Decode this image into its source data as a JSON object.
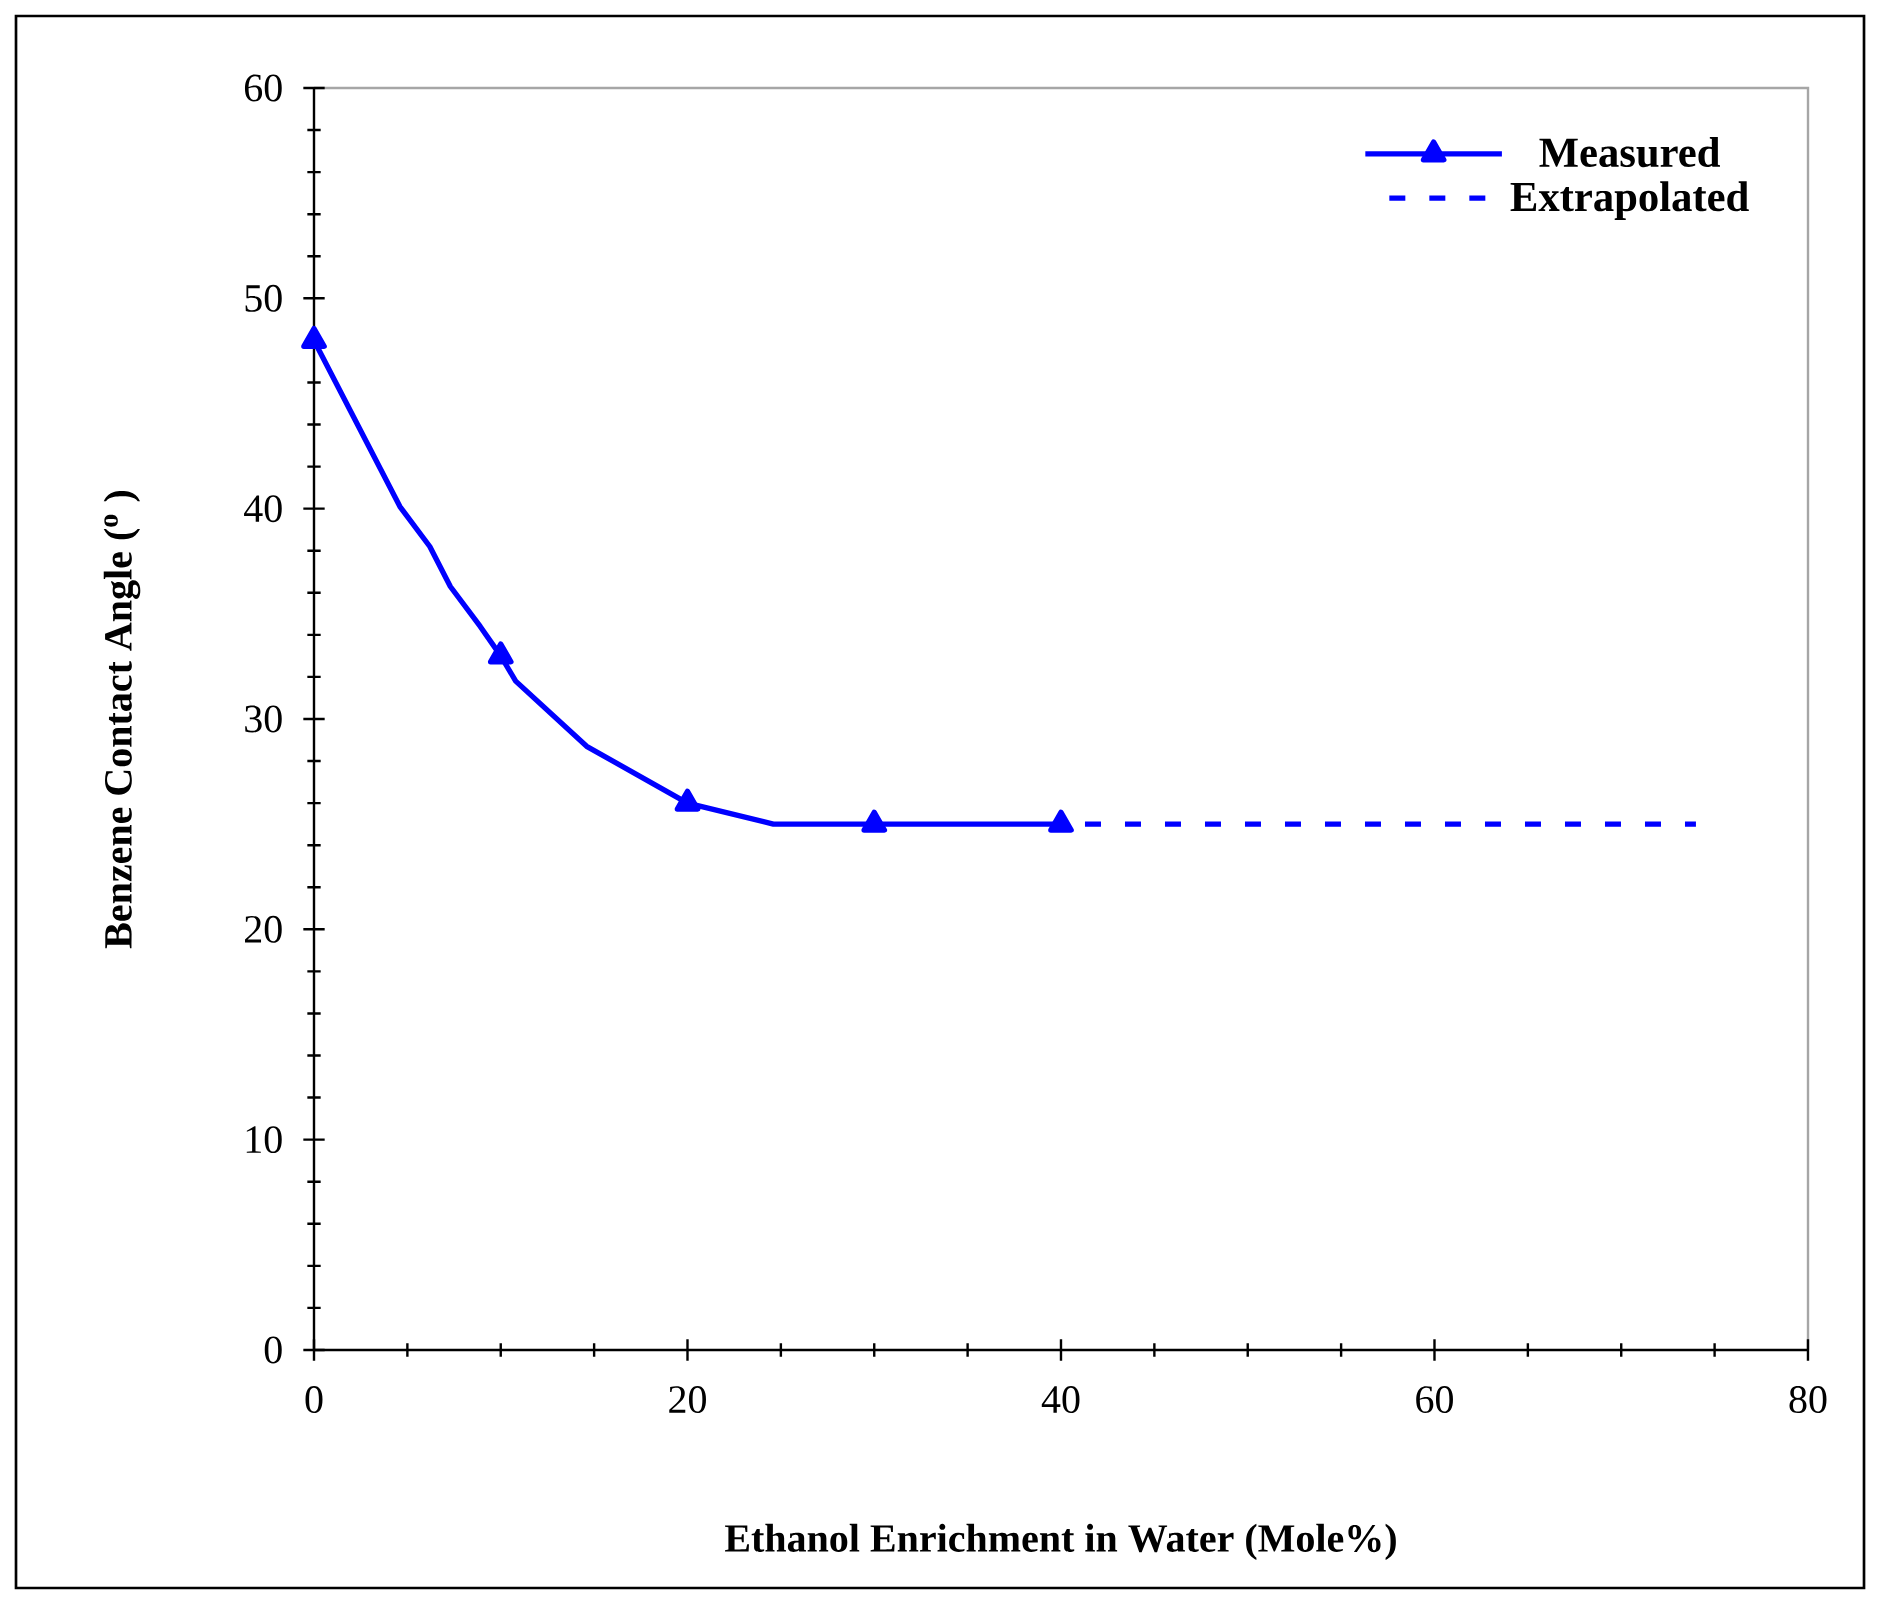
{
  "chart_data": {
    "type": "line",
    "xlabel": "Ethanol Enrichment in Water (Mole%)",
    "ylabel": "Benzene Contact Angle ($^{o}$ )",
    "xlim": [
      0,
      80
    ],
    "xticks": [
      0,
      20,
      40,
      60,
      80
    ],
    "ylim": [
      0,
      60
    ],
    "yticks": [
      0,
      10,
      20,
      30,
      40,
      50,
      60
    ],
    "legend": "top right",
    "grid": false,
    "series": [
      {
        "name": "Measured",
        "color": "#0000ff",
        "line_style": "solid",
        "marker": "none",
        "x": [
          0,
          4.6,
          6.2,
          7.3,
          8.9,
          10,
          10.8,
          14.6,
          20,
          24.6,
          30,
          40
        ],
        "values": [
          48,
          40.1,
          38.2,
          36.3,
          34.4,
          33,
          31.8,
          28.7,
          26,
          25,
          25,
          25
        ]
      },
      {
        "type": "scatter",
        "color": "#0000ff",
        "marker": "triangle",
        "x": [
          0,
          10,
          20,
          30,
          40
        ],
        "values": [
          48,
          33,
          26,
          25,
          25
        ]
      },
      {
        "name": "Extrapolated",
        "color": "#0000ff",
        "line_style": "dashed",
        "marker": "none",
        "x": [
          40,
          74
        ],
        "values": [
          25,
          25
        ]
      }
    ]
  }
}
